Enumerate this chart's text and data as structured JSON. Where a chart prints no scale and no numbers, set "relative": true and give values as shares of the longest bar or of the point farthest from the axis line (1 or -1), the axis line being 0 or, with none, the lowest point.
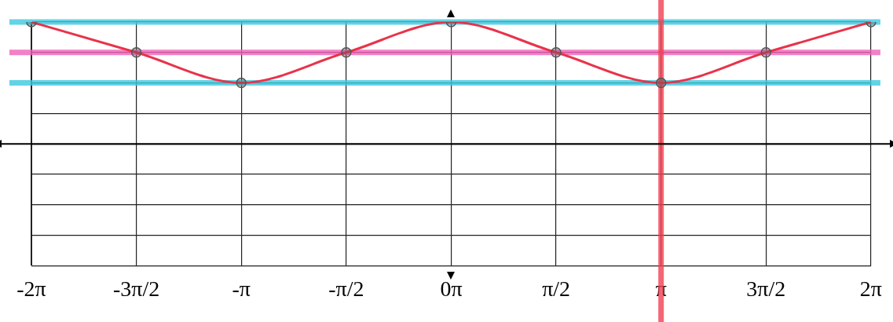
{
  "chart_data": {
    "type": "line",
    "relative": true,
    "categories": [
      "-2π",
      "-3π/2",
      "-π",
      "-π/2",
      "0π",
      "π/2",
      "π",
      "3π/2",
      "2π"
    ],
    "series": [
      {
        "color": "#e8334a",
        "values": [
          1,
          0.75,
          0.5,
          0.75,
          1,
          0.75,
          0.5,
          0.75,
          1
        ]
      }
    ],
    "ref_lines": [
      {
        "axis": "y",
        "value": 1,
        "color": "#3cc8e0"
      },
      {
        "axis": "y",
        "value": 0.75,
        "color": "#f060b8"
      },
      {
        "axis": "y",
        "value": 0.5,
        "color": "#3cc8e0"
      },
      {
        "axis": "x",
        "value": "π",
        "color": "#f04050"
      }
    ],
    "grid": true,
    "marker": "circle",
    "line_style": "solid",
    "tick_labels": "x"
  }
}
